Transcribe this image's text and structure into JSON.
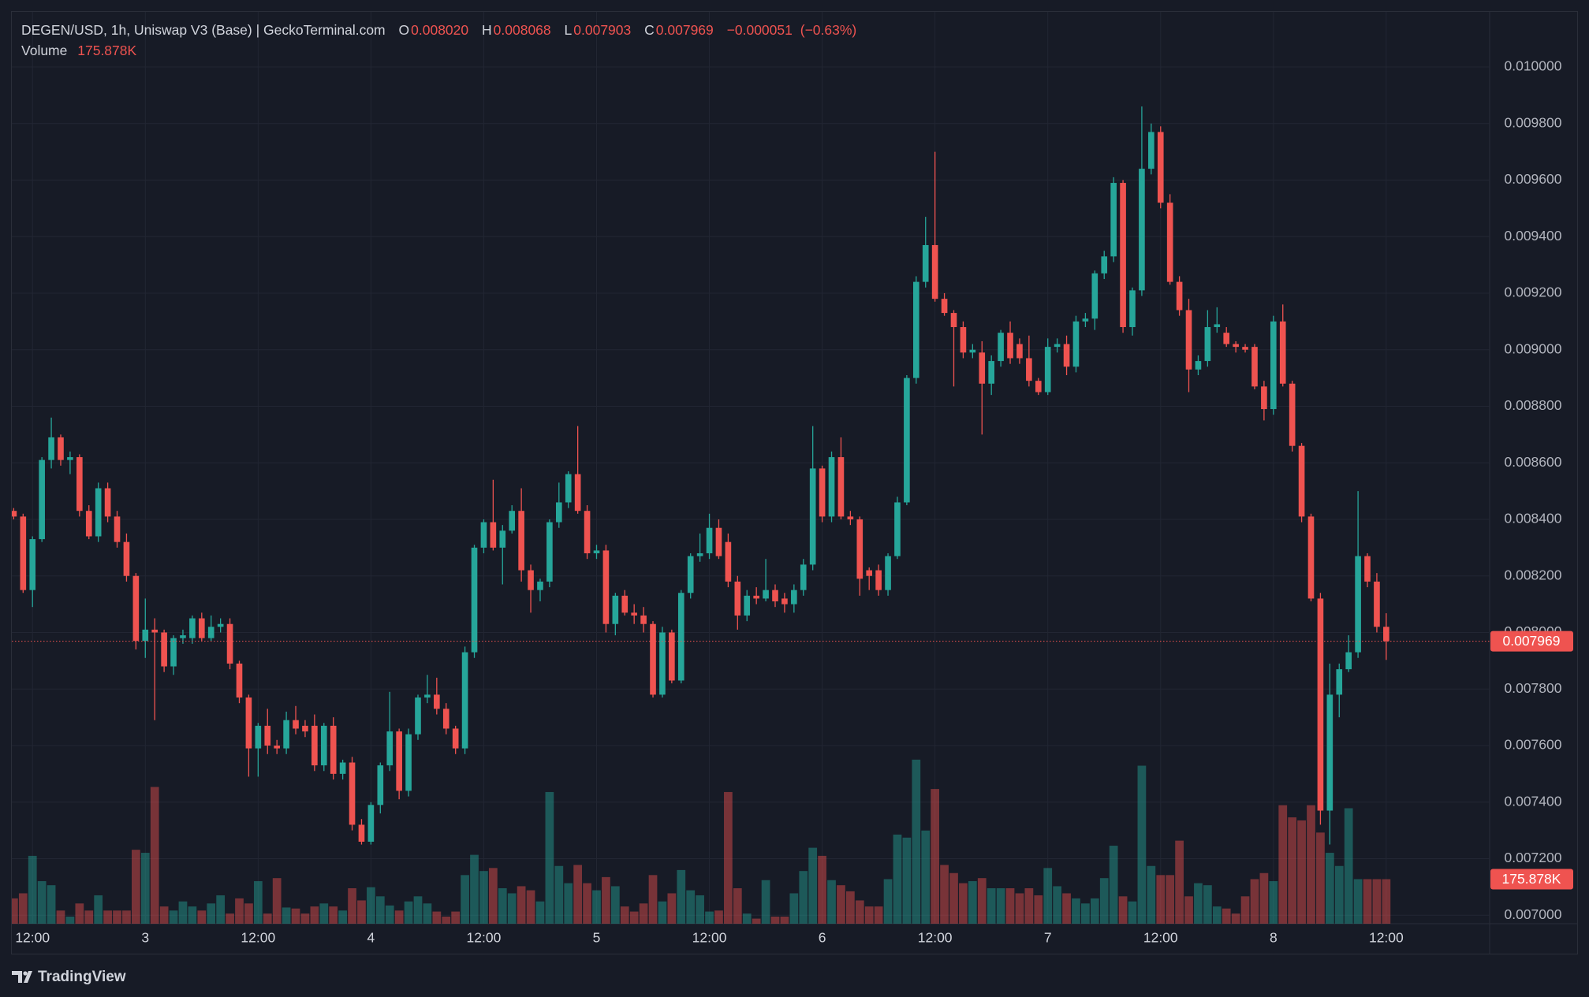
{
  "chart_data": {
    "type": "candlestick",
    "title": "DEGEN/USD, 1h, Uniswap V3 (Base) | GeckoTerminal.com",
    "summary": [
      {
        "name": "O",
        "value": 0.00802,
        "label": "0.008020"
      },
      {
        "name": "H",
        "value": 0.008068
      },
      {
        "name": "L",
        "value": 0.007903
      },
      {
        "name": "C",
        "value": 0.007969
      }
    ],
    "change": {
      "value": -5.1e-05,
      "label": "−0.000051"
    },
    "change_pct": {
      "value": -0.63,
      "label": "(−0.63%)"
    },
    "volume_name": "Volume",
    "last_volume": {
      "value": 175878,
      "label": "175.878K"
    },
    "brand": "TradingView",
    "up_color": "#26a69a",
    "down_color": "#ef5350",
    "grid": true,
    "x": [
      10,
      11,
      12,
      13,
      14,
      15,
      16,
      17,
      18,
      19,
      20,
      21,
      22,
      23,
      24,
      25,
      26,
      27,
      28,
      29,
      30,
      31,
      32,
      33,
      34,
      35,
      36,
      37,
      38,
      39,
      40,
      41,
      42,
      43,
      44,
      45,
      46,
      47,
      48,
      49,
      50,
      51,
      52,
      53,
      54,
      55,
      56,
      57,
      58,
      59,
      60,
      61,
      62,
      63,
      64,
      65,
      66,
      67,
      68,
      69,
      70,
      71,
      72,
      73,
      74,
      75,
      76,
      77,
      78,
      79,
      80,
      81,
      82,
      83,
      84,
      85,
      86,
      87,
      88,
      89,
      90,
      91,
      92,
      93,
      94,
      95,
      96,
      97,
      98,
      99,
      100,
      101,
      102,
      103,
      104,
      105,
      106,
      107,
      108,
      109,
      110,
      111,
      112,
      113,
      114,
      115,
      116,
      117,
      118,
      119,
      120,
      121,
      122,
      123,
      124,
      125,
      126,
      127,
      128,
      129,
      130,
      131,
      132,
      133,
      134,
      135,
      136,
      137,
      138,
      139,
      140,
      141,
      142,
      143,
      144,
      145,
      146,
      147,
      148,
      149,
      150,
      151,
      152,
      153,
      154,
      155,
      156
    ],
    "open": [
      0.00843,
      0.00841,
      0.00815,
      0.00833,
      0.00861,
      0.00869,
      0.00861,
      0.00862,
      0.00843,
      0.00834,
      0.00851,
      0.00841,
      0.00832,
      0.0082,
      0.00797,
      0.00801,
      0.008,
      0.00788,
      0.00798,
      0.00798,
      0.00805,
      0.00798,
      0.00802,
      0.00803,
      0.00789,
      0.00777,
      0.00759,
      0.00767,
      0.0076,
      0.00759,
      0.00769,
      0.00767,
      0.00767,
      0.00753,
      0.00767,
      0.0075,
      0.00754,
      0.00732,
      0.00726,
      0.00739,
      0.00753,
      0.00765,
      0.00744,
      0.00764,
      0.00777,
      0.00778,
      0.00773,
      0.00766,
      0.00759,
      0.00793,
      0.0083,
      0.00839,
      0.0083,
      0.00836,
      0.00843,
      0.00822,
      0.00815,
      0.00818,
      0.00839,
      0.00846,
      0.00856,
      0.00843,
      0.00828,
      0.00829,
      0.00803,
      0.00813,
      0.00807,
      0.00806,
      0.00803,
      0.00778,
      0.008,
      0.00783,
      0.00814,
      0.00827,
      0.00828,
      0.00837,
      0.00832,
      0.00818,
      0.00806,
      0.00813,
      0.00812,
      0.00815,
      0.00812,
      0.0081,
      0.00815,
      0.00824,
      0.00858,
      0.00841,
      0.00862,
      0.00841,
      0.0084,
      0.00822,
      0.00822,
      0.00815,
      0.00827,
      0.00846,
      0.0089,
      0.00924,
      0.00937,
      0.00918,
      0.00913,
      0.00908,
      0.00899,
      0.00899,
      0.00888,
      0.00896,
      0.00906,
      0.00902,
      0.00897,
      0.00889,
      0.00885,
      0.00901,
      0.00902,
      0.00894,
      0.0091,
      0.00911,
      0.00927,
      0.00933,
      0.00959,
      0.00908,
      0.00921,
      0.00964,
      0.00977,
      0.00952,
      0.00924,
      0.00914,
      0.00893,
      0.00896,
      0.00908,
      0.00906,
      0.00902,
      0.00901,
      0.00901,
      0.00887,
      0.00879,
      0.0091,
      0.00888,
      0.00866,
      0.00841,
      0.00812,
      0.00737,
      0.00778,
      0.00787,
      0.00793,
      0.00827,
      0.00818,
      0.00802
    ],
    "close": [
      0.00841,
      0.00815,
      0.00833,
      0.00861,
      0.00869,
      0.00861,
      0.00862,
      0.00843,
      0.00834,
      0.00851,
      0.00841,
      0.00832,
      0.0082,
      0.00797,
      0.00801,
      0.008,
      0.00788,
      0.00798,
      0.00799,
      0.00805,
      0.00798,
      0.00802,
      0.00803,
      0.00789,
      0.00777,
      0.00759,
      0.00767,
      0.0076,
      0.00759,
      0.00769,
      0.00766,
      0.00765,
      0.00753,
      0.00767,
      0.0075,
      0.00754,
      0.00732,
      0.00726,
      0.00739,
      0.00753,
      0.00765,
      0.00744,
      0.00764,
      0.00777,
      0.00778,
      0.00773,
      0.00766,
      0.00759,
      0.00793,
      0.0083,
      0.00839,
      0.0083,
      0.00836,
      0.00843,
      0.00822,
      0.00815,
      0.00818,
      0.00839,
      0.00846,
      0.00856,
      0.00843,
      0.00828,
      0.00829,
      0.00803,
      0.00813,
      0.00807,
      0.00806,
      0.00803,
      0.00778,
      0.008,
      0.00783,
      0.00814,
      0.00827,
      0.00828,
      0.00837,
      0.00827,
      0.00818,
      0.00806,
      0.00813,
      0.00812,
      0.00815,
      0.00811,
      0.0081,
      0.00815,
      0.00824,
      0.00858,
      0.00841,
      0.00862,
      0.00841,
      0.0084,
      0.00819,
      0.0082,
      0.00815,
      0.00827,
      0.00846,
      0.0089,
      0.00924,
      0.00937,
      0.00918,
      0.00913,
      0.00908,
      0.00899,
      0.009,
      0.00888,
      0.00896,
      0.00906,
      0.00897,
      0.00897,
      0.00889,
      0.00885,
      0.00901,
      0.00902,
      0.00894,
      0.0091,
      0.00911,
      0.00927,
      0.00933,
      0.00959,
      0.00908,
      0.00921,
      0.00964,
      0.00977,
      0.00952,
      0.00924,
      0.00914,
      0.00893,
      0.00896,
      0.00908,
      0.00909,
      0.00902,
      0.00901,
      0.009,
      0.00887,
      0.00879,
      0.0091,
      0.00888,
      0.00866,
      0.00841,
      0.00812,
      0.00737,
      0.00778,
      0.00787,
      0.00793,
      0.00827,
      0.00818,
      0.00802,
      0.007969
    ],
    "high": [
      0.00844,
      0.00842,
      0.00834,
      0.00862,
      0.00876,
      0.0087,
      0.00864,
      0.00863,
      0.00845,
      0.00853,
      0.00853,
      0.00843,
      0.00835,
      0.00821,
      0.00812,
      0.00805,
      0.00801,
      0.00799,
      0.00801,
      0.00806,
      0.00807,
      0.00806,
      0.00805,
      0.00805,
      0.0079,
      0.00778,
      0.00768,
      0.00773,
      0.00762,
      0.00772,
      0.00774,
      0.00769,
      0.00771,
      0.00768,
      0.0077,
      0.00755,
      0.00756,
      0.00734,
      0.0074,
      0.00754,
      0.00779,
      0.00766,
      0.00766,
      0.00778,
      0.00785,
      0.00784,
      0.00775,
      0.00767,
      0.00795,
      0.00831,
      0.0084,
      0.00854,
      0.00838,
      0.00845,
      0.00851,
      0.00824,
      0.00819,
      0.0084,
      0.00853,
      0.00857,
      0.00873,
      0.00845,
      0.00831,
      0.00831,
      0.00814,
      0.00815,
      0.0081,
      0.00809,
      0.00804,
      0.00802,
      0.00801,
      0.00815,
      0.00828,
      0.00835,
      0.00842,
      0.0084,
      0.00835,
      0.0082,
      0.00815,
      0.00816,
      0.00826,
      0.00817,
      0.00814,
      0.00817,
      0.00826,
      0.00873,
      0.00859,
      0.00864,
      0.00869,
      0.00843,
      0.00841,
      0.00823,
      0.00824,
      0.00828,
      0.00848,
      0.00891,
      0.00926,
      0.00947,
      0.0097,
      0.0092,
      0.00914,
      0.0091,
      0.00902,
      0.00903,
      0.00898,
      0.00907,
      0.0091,
      0.00904,
      0.00905,
      0.0089,
      0.00904,
      0.00904,
      0.00905,
      0.00912,
      0.00913,
      0.00928,
      0.00935,
      0.00961,
      0.0096,
      0.00922,
      0.00986,
      0.0098,
      0.00979,
      0.00955,
      0.00926,
      0.00918,
      0.00898,
      0.00914,
      0.00915,
      0.00908,
      0.00903,
      0.00902,
      0.00902,
      0.00889,
      0.00912,
      0.00916,
      0.00889,
      0.00867,
      0.00842,
      0.00814,
      0.00789,
      0.00789,
      0.00799,
      0.0085,
      0.00828,
      0.00821,
      0.008068
    ],
    "low": [
      0.0084,
      0.00814,
      0.00809,
      0.00832,
      0.00858,
      0.00859,
      0.00856,
      0.00841,
      0.00833,
      0.00832,
      0.00839,
      0.0083,
      0.00818,
      0.00794,
      0.00791,
      0.00769,
      0.00786,
      0.00785,
      0.00796,
      0.00796,
      0.00797,
      0.00797,
      0.008,
      0.00787,
      0.00775,
      0.00749,
      0.00749,
      0.00757,
      0.00757,
      0.00757,
      0.00764,
      0.00763,
      0.00751,
      0.00751,
      0.00748,
      0.00748,
      0.0073,
      0.00725,
      0.00725,
      0.00736,
      0.00751,
      0.00741,
      0.00742,
      0.00762,
      0.00775,
      0.00771,
      0.00764,
      0.00757,
      0.00757,
      0.00791,
      0.00828,
      0.00829,
      0.00817,
      0.00835,
      0.00818,
      0.00807,
      0.00811,
      0.00816,
      0.00837,
      0.00844,
      0.00842,
      0.00826,
      0.00826,
      0.008,
      0.00799,
      0.00806,
      0.00803,
      0.008,
      0.00777,
      0.00777,
      0.00782,
      0.00782,
      0.00812,
      0.00825,
      0.00826,
      0.00826,
      0.00816,
      0.00801,
      0.00804,
      0.0081,
      0.00811,
      0.00809,
      0.00807,
      0.00807,
      0.00813,
      0.00822,
      0.00839,
      0.00839,
      0.0084,
      0.00838,
      0.00813,
      0.00815,
      0.00813,
      0.00813,
      0.00826,
      0.00845,
      0.00888,
      0.00922,
      0.00917,
      0.00912,
      0.00887,
      0.00897,
      0.00897,
      0.0087,
      0.00884,
      0.00894,
      0.00895,
      0.00895,
      0.00887,
      0.00884,
      0.00884,
      0.00899,
      0.00891,
      0.00892,
      0.00908,
      0.00907,
      0.00925,
      0.00931,
      0.00906,
      0.00905,
      0.00919,
      0.00962,
      0.0095,
      0.00923,
      0.00912,
      0.00885,
      0.00891,
      0.00894,
      0.00906,
      0.00901,
      0.00899,
      0.00899,
      0.00886,
      0.00875,
      0.00877,
      0.00887,
      0.00864,
      0.00839,
      0.00811,
      0.00732,
      0.00725,
      0.0077,
      0.00786,
      0.00791,
      0.00816,
      0.008,
      0.007903
    ],
    "volume": [
      100000,
      120000,
      268000,
      168000,
      152000,
      52000,
      28000,
      80000,
      52000,
      112000,
      52000,
      52000,
      52000,
      292000,
      280000,
      540000,
      68000,
      52000,
      88000,
      68000,
      52000,
      80000,
      112000,
      40000,
      100000,
      80000,
      168000,
      40000,
      180000,
      64000,
      60000,
      40000,
      68000,
      80000,
      68000,
      52000,
      140000,
      92000,
      144000,
      108000,
      72000,
      52000,
      88000,
      108000,
      80000,
      48000,
      28000,
      48000,
      192000,
      272000,
      208000,
      220000,
      140000,
      120000,
      148000,
      132000,
      88000,
      520000,
      228000,
      160000,
      232000,
      160000,
      132000,
      184000,
      148000,
      68000,
      48000,
      80000,
      192000,
      88000,
      120000,
      212000,
      132000,
      112000,
      48000,
      52000,
      520000,
      140000,
      40000,
      20000,
      172000,
      28000,
      28000,
      120000,
      208000,
      300000,
      268000,
      172000,
      152000,
      128000,
      92000,
      68000,
      68000,
      176000,
      352000,
      340000,
      648000,
      368000,
      532000,
      232000,
      200000,
      160000,
      168000,
      180000,
      140000,
      140000,
      140000,
      120000,
      140000,
      112000,
      220000,
      148000,
      120000,
      100000,
      80000,
      100000,
      180000,
      308000,
      108000,
      88000,
      624000,
      228000,
      192000,
      192000,
      328000,
      108000,
      160000,
      152000,
      68000,
      60000,
      40000,
      108000,
      176000,
      200000,
      168000,
      468000,
      420000,
      408000,
      468000,
      360000,
      280000,
      228000,
      456000,
      176000,
      176000,
      176000,
      175878
    ],
    "xlim": [
      9.8,
      167
    ],
    "xticks": [
      {
        "value": 12,
        "label": "12:00"
      },
      {
        "value": 24,
        "label": "3"
      },
      {
        "value": 36,
        "label": "12:00"
      },
      {
        "value": 48,
        "label": "4"
      },
      {
        "value": 60,
        "label": "12:00"
      },
      {
        "value": 72,
        "label": "5"
      },
      {
        "value": 84,
        "label": "12:00"
      },
      {
        "value": 96,
        "label": "6"
      },
      {
        "value": 108,
        "label": "12:00"
      },
      {
        "value": 120,
        "label": "7"
      },
      {
        "value": 132,
        "label": "12:00"
      },
      {
        "value": 144,
        "label": "8"
      },
      {
        "value": 156,
        "label": "12:00"
      }
    ],
    "ylim": [
      0.00697,
      0.010195
    ],
    "yticks": [
      {
        "value": 0.007,
        "label": "0.007000"
      },
      {
        "value": 0.0072,
        "label": "0.007200"
      },
      {
        "value": 0.0074,
        "label": "0.007400"
      },
      {
        "value": 0.0076,
        "label": "0.007600"
      },
      {
        "value": 0.0078,
        "label": "0.007800"
      },
      {
        "value": 0.008,
        "label": "0.008000"
      },
      {
        "value": 0.0082,
        "label": "0.008200"
      },
      {
        "value": 0.0084,
        "label": "0.008400"
      },
      {
        "value": 0.0086,
        "label": "0.008600"
      },
      {
        "value": 0.0088,
        "label": "0.008800"
      },
      {
        "value": 0.009,
        "label": "0.009000"
      },
      {
        "value": 0.0092,
        "label": "0.009200"
      },
      {
        "value": 0.0094,
        "label": "0.009400"
      },
      {
        "value": 0.0096,
        "label": "0.009600"
      },
      {
        "value": 0.0098,
        "label": "0.009800"
      },
      {
        "value": 0.01,
        "label": "0.010000"
      }
    ],
    "volume_lim": [
      0,
      800000
    ]
  }
}
